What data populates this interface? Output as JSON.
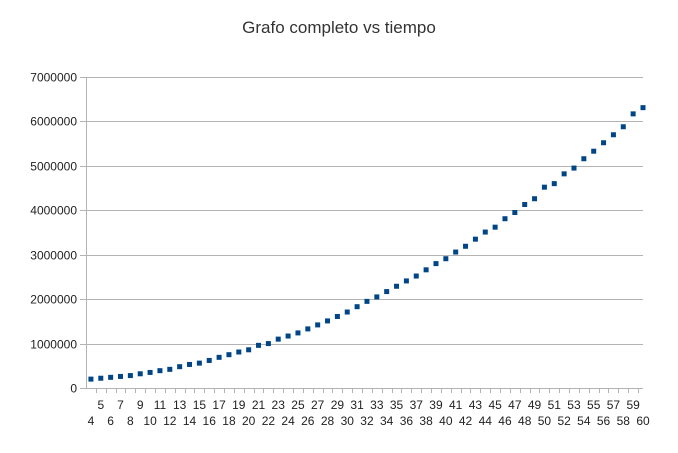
{
  "chart_data": {
    "type": "scatter",
    "title": "Grafo completo vs tiempo",
    "xlabel": "",
    "ylabel": "",
    "ylim": [
      0,
      7000000
    ],
    "yticks": [
      0,
      1000000,
      2000000,
      3000000,
      4000000,
      5000000,
      6000000,
      7000000
    ],
    "grid": true,
    "legend": "none",
    "marker_color": "#004586",
    "categories": [
      "4",
      "5",
      "6",
      "7",
      "8",
      "9",
      "10",
      "11",
      "12",
      "13",
      "14",
      "15",
      "16",
      "17",
      "18",
      "19",
      "20",
      "21",
      "22",
      "23",
      "24",
      "25",
      "26",
      "27",
      "28",
      "29",
      "30",
      "31",
      "32",
      "33",
      "34",
      "35",
      "36",
      "37",
      "38",
      "39",
      "40",
      "41",
      "42",
      "43",
      "44",
      "45",
      "46",
      "47",
      "48",
      "49",
      "50",
      "51",
      "52",
      "53",
      "54",
      "55",
      "56",
      "57",
      "58",
      "59",
      "60"
    ],
    "values": [
      200000,
      220000,
      240000,
      260000,
      280000,
      320000,
      350000,
      390000,
      420000,
      480000,
      530000,
      560000,
      620000,
      690000,
      750000,
      810000,
      860000,
      960000,
      1000000,
      1100000,
      1170000,
      1240000,
      1330000,
      1420000,
      1510000,
      1610000,
      1710000,
      1830000,
      1950000,
      2050000,
      2170000,
      2290000,
      2410000,
      2520000,
      2660000,
      2800000,
      2910000,
      3060000,
      3190000,
      3350000,
      3510000,
      3620000,
      3810000,
      3950000,
      4130000,
      4260000,
      4520000,
      4600000,
      4820000,
      4950000,
      5160000,
      5330000,
      5520000,
      5700000,
      5880000,
      6170000,
      6310000
    ]
  }
}
